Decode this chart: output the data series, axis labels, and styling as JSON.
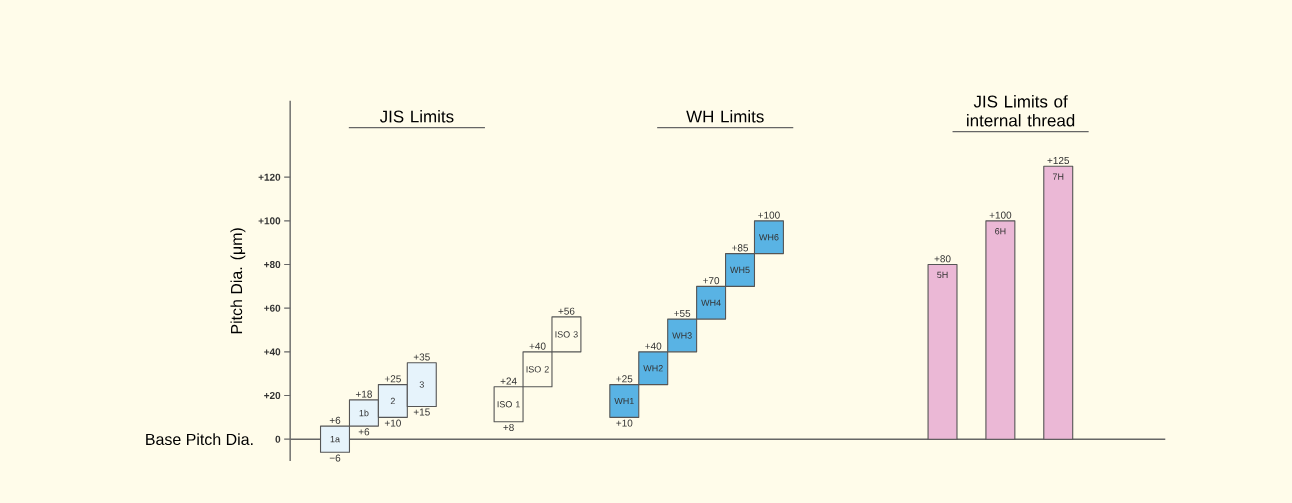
{
  "chart_data": {
    "type": "bar",
    "ylabel": "Pitch Dia. (μm)",
    "categories": [
      "1a",
      "1b",
      "2",
      "3",
      null,
      null,
      "ISO 1",
      "ISO 2",
      "ISO 3",
      null,
      "WH1",
      "WH2",
      "WH3",
      "WH4",
      "WH5",
      "WH6",
      null,
      null,
      null,
      null,
      null,
      "5H",
      null,
      "6H",
      null,
      "7H"
    ],
    "series": [
      {
        "color": "#e6f3fb",
        "values": [
          12,
          12,
          15,
          20,
          null,
          null,
          null,
          null,
          null,
          null,
          null,
          null,
          null,
          null,
          null,
          null,
          null,
          null,
          null,
          null,
          null,
          null,
          null,
          null,
          null,
          null
        ],
        "base": [
          -6,
          6,
          10,
          15,
          null,
          null,
          null,
          null,
          null,
          null,
          null,
          null,
          null,
          null,
          null,
          null,
          null,
          null,
          null,
          null,
          null,
          null,
          null,
          null,
          null,
          null
        ],
        "value_labels": [
          "+6",
          "+18",
          "+25",
          "+35",
          null,
          null,
          null,
          null,
          null,
          null,
          null,
          null,
          null,
          null,
          null,
          null,
          null,
          null,
          null,
          null,
          null,
          null,
          null,
          null,
          null,
          null
        ]
      },
      {
        "color": "#fffcea",
        "values": [
          null,
          null,
          null,
          null,
          null,
          null,
          16,
          16,
          16,
          null,
          null,
          null,
          null,
          null,
          null,
          null,
          null,
          null,
          null,
          null,
          null,
          null,
          null,
          null,
          null,
          null
        ],
        "base": [
          null,
          null,
          null,
          null,
          null,
          null,
          8,
          24,
          40,
          null,
          null,
          null,
          null,
          null,
          null,
          null,
          null,
          null,
          null,
          null,
          null,
          null,
          null,
          null,
          null,
          null
        ],
        "value_labels": [
          null,
          null,
          null,
          null,
          null,
          null,
          "+24",
          "+40",
          "+56",
          null,
          null,
          null,
          null,
          null,
          null,
          null,
          null,
          null,
          null,
          null,
          null,
          null,
          null,
          null,
          null,
          null
        ]
      },
      {
        "color": "#59b3e4",
        "values": [
          null,
          null,
          null,
          null,
          null,
          null,
          null,
          null,
          null,
          null,
          15,
          15,
          15,
          15,
          15,
          15,
          null,
          null,
          null,
          null,
          null,
          null,
          null,
          null,
          null,
          null
        ],
        "base": [
          null,
          null,
          null,
          null,
          null,
          null,
          null,
          null,
          null,
          null,
          10,
          25,
          40,
          55,
          70,
          85,
          null,
          null,
          null,
          null,
          null,
          null,
          null,
          null,
          null,
          null
        ],
        "value_labels": [
          null,
          null,
          null,
          null,
          null,
          null,
          null,
          null,
          null,
          null,
          "+25",
          "+40",
          "+55",
          "+70",
          "+85",
          "+100",
          null,
          null,
          null,
          null,
          null,
          null,
          null,
          null,
          null,
          null
        ]
      },
      {
        "color": "#ebb8d6",
        "values": [
          null,
          null,
          null,
          null,
          null,
          null,
          null,
          null,
          null,
          null,
          null,
          null,
          null,
          null,
          null,
          null,
          null,
          null,
          null,
          null,
          null,
          80,
          null,
          100,
          null,
          125
        ],
        "base": [
          null,
          null,
          null,
          null,
          null,
          null,
          null,
          null,
          null,
          null,
          null,
          null,
          null,
          null,
          null,
          null,
          null,
          null,
          null,
          null,
          null,
          0,
          null,
          0,
          null,
          0
        ],
        "value_labels": [
          null,
          null,
          null,
          null,
          null,
          null,
          null,
          null,
          null,
          null,
          null,
          null,
          null,
          null,
          null,
          null,
          null,
          null,
          null,
          null,
          null,
          "+80",
          null,
          "+100",
          null,
          "+125"
        ]
      }
    ],
    "ylim": [
      -10,
      155
    ],
    "yticks": [
      0,
      {
        "value": 20,
        "label": "+20"
      },
      {
        "value": 40,
        "label": "+40"
      },
      {
        "value": 60,
        "label": "+60"
      },
      {
        "value": 80,
        "label": "+80"
      },
      {
        "value": 100,
        "label": "+100"
      },
      {
        "value": 120,
        "label": "+120"
      }
    ],
    "ref_lines": [
      {
        "axis": "y",
        "value": 0,
        "label": "Base Pitch Dia."
      }
    ],
    "annotations": [
      "JIS Limits",
      "WH Limits",
      "JIS Limits of internal thread",
      {
        "text": "−6",
        "x": "1a",
        "y": -6
      },
      {
        "text": "+6",
        "x": "1b",
        "y": 6
      },
      {
        "text": "+10",
        "x": "2",
        "y": 10
      },
      {
        "text": "+15",
        "x": "3",
        "y": 15
      },
      {
        "text": "+8",
        "x": "ISO 1",
        "y": 8
      },
      {
        "text": "+10",
        "x": "WH1",
        "y": 10
      }
    ]
  }
}
